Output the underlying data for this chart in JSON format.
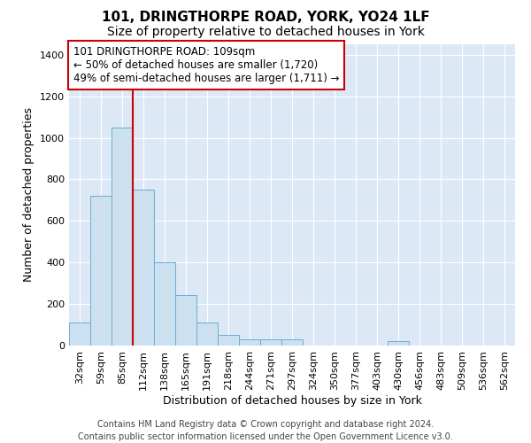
{
  "title_line1": "101, DRINGTHORPE ROAD, YORK, YO24 1LF",
  "title_line2": "Size of property relative to detached houses in York",
  "xlabel": "Distribution of detached houses by size in York",
  "ylabel": "Number of detached properties",
  "categories": [
    "32sqm",
    "59sqm",
    "85sqm",
    "112sqm",
    "138sqm",
    "165sqm",
    "191sqm",
    "218sqm",
    "244sqm",
    "271sqm",
    "297sqm",
    "324sqm",
    "350sqm",
    "377sqm",
    "403sqm",
    "430sqm",
    "456sqm",
    "483sqm",
    "509sqm",
    "536sqm",
    "562sqm"
  ],
  "values": [
    110,
    720,
    1050,
    750,
    400,
    245,
    110,
    50,
    30,
    30,
    30,
    0,
    0,
    0,
    0,
    20,
    0,
    0,
    0,
    0,
    0
  ],
  "bar_color": "#cce0f0",
  "bar_edge_color": "#6aaed6",
  "bar_width": 1.0,
  "vline_x": 3.0,
  "vline_color": "#cc0000",
  "annotation_text": "101 DRINGTHORPE ROAD: 109sqm\n← 50% of detached houses are smaller (1,720)\n49% of semi-detached houses are larger (1,711) →",
  "annotation_box_edgecolor": "#cc0000",
  "ylim": [
    0,
    1450
  ],
  "yticks": [
    0,
    200,
    400,
    600,
    800,
    1000,
    1200,
    1400
  ],
  "background_color": "#ffffff",
  "plot_bg_color": "#dce8f5",
  "grid_color": "#ffffff",
  "footer_text": "Contains HM Land Registry data © Crown copyright and database right 2024.\nContains public sector information licensed under the Open Government Licence v3.0.",
  "title_fontsize": 11,
  "subtitle_fontsize": 10,
  "axis_label_fontsize": 9,
  "tick_fontsize": 8,
  "annotation_fontsize": 8.5,
  "footer_fontsize": 7
}
